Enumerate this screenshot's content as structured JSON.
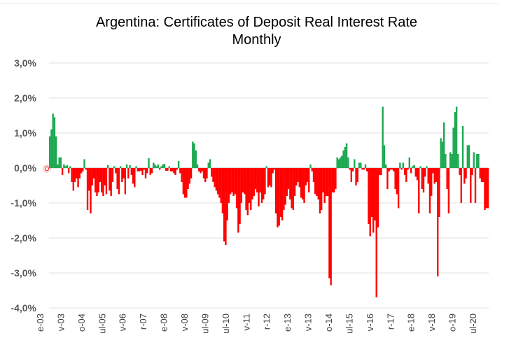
{
  "chart_data": {
    "type": "bar",
    "title": "Argentina: Certificates of Deposit Real Interest Rate",
    "subtitle": "Monthly",
    "xlabel": "",
    "ylabel": "",
    "ylim": [
      -4.0,
      3.0
    ],
    "yticks": [
      "3,0%",
      "2,0%",
      "1,0%",
      "0,0%",
      "-1,0%",
      "-2,0%",
      "-3,0%",
      "-4,0%"
    ],
    "xticks": [
      "e-03",
      "v-03",
      "o-04",
      "ul-05",
      "v-06",
      "r-07",
      "e-08",
      "v-08",
      "ul-09",
      "ul-10",
      "v-11",
      "r-12",
      "e-13",
      "v-13",
      "o-14",
      "ul-15",
      "v-16",
      "r-17",
      "e-18",
      "v-18",
      "o-19",
      "ul-20"
    ],
    "grid": true,
    "legend": "none",
    "colors": {
      "positive": "#1ea852",
      "negative": "#ff0000"
    },
    "values": [
      0.9,
      1.1,
      1.55,
      1.45,
      0.9,
      0.1,
      0.3,
      0.3,
      -0.2,
      0.1,
      0.05,
      0.08,
      -0.15,
      0.05,
      -0.4,
      -0.65,
      -0.4,
      -0.3,
      -0.55,
      -0.3,
      -0.15,
      -0.1,
      0.25,
      -0.05,
      -1.2,
      -0.65,
      -1.3,
      -0.5,
      -0.3,
      -0.7,
      -0.8,
      -0.7,
      -0.4,
      -0.7,
      -0.8,
      -0.5,
      -0.75,
      0.08,
      -0.65,
      -0.8,
      -0.4,
      0.05,
      -0.15,
      -0.6,
      -0.75,
      0.05,
      -0.4,
      -0.3,
      -0.75,
      0.1,
      -0.3,
      0.08,
      -0.2,
      -0.45,
      -0.55,
      0.05,
      -0.1,
      -0.1,
      -0.08,
      -0.2,
      -0.05,
      -0.3,
      -0.15,
      0.28,
      -0.2,
      -0.15,
      0.15,
      0.1,
      0.05,
      0.1,
      -0.05,
      0.05,
      0.1,
      0.12,
      -0.08,
      -0.08,
      0.05,
      -0.1,
      -0.1,
      -0.15,
      -0.2,
      -0.05,
      0.2,
      -0.15,
      -0.4,
      -0.75,
      -0.85,
      -0.85,
      -0.6,
      -0.45,
      -0.3,
      0.75,
      0.7,
      0.5,
      0.1,
      -0.1,
      -0.15,
      -0.1,
      -0.3,
      -0.4,
      -0.3,
      0.15,
      0.25,
      -0.25,
      -0.4,
      -0.55,
      -0.65,
      -0.75,
      -0.85,
      -1.0,
      -1.3,
      -2.1,
      -2.2,
      -1.5,
      -1.0,
      -0.75,
      -0.7,
      -0.8,
      -0.75,
      -1.15,
      -1.85,
      -1.6,
      -1.0,
      -0.7,
      -0.75,
      -1.2,
      -1.35,
      -1.0,
      -1.2,
      -0.9,
      -0.8,
      -0.6,
      -0.7,
      -1.1,
      -0.7,
      -1.0,
      -0.9,
      -0.75,
      0.05,
      -0.55,
      -0.5,
      -0.55,
      -0.15,
      -0.05,
      -1.3,
      -1.7,
      -1.65,
      -1.4,
      -1.5,
      -1.2,
      -1.05,
      -0.8,
      -0.6,
      -0.9,
      -1.15,
      -1.2,
      -0.8,
      -0.5,
      -0.4,
      -0.55,
      -0.85,
      -0.9,
      -1.0,
      -0.5,
      -0.4,
      -0.7,
      0.1,
      -0.1,
      -0.4,
      -0.75,
      -0.8,
      -0.9,
      -1.3,
      -1.2,
      -0.7,
      -1.0,
      -0.8,
      -0.8,
      -3.15,
      -3.35,
      -0.7,
      -0.7,
      -0.6,
      0.3,
      0.25,
      0.3,
      0.35,
      0.5,
      0.6,
      0.7,
      0.3,
      -0.05,
      -0.4,
      -0.1,
      0.25,
      -0.5,
      -0.4,
      0.15,
      0.15,
      -0.05,
      -0.05,
      0.1,
      -0.1,
      -1.6,
      -1.95,
      -1.4,
      -1.85,
      -1.5,
      -3.7,
      -1.7,
      -0.2,
      -0.2,
      1.75,
      0.65,
      0.1,
      -0.6,
      -0.1,
      -0.05,
      -0.05,
      -0.1,
      -0.6,
      -0.75,
      -1.15,
      0.15,
      -0.05,
      0.15,
      -0.2,
      -0.4,
      -0.05,
      0.3,
      -0.15,
      0.05,
      0.08,
      -0.25,
      -0.35,
      -1.3,
      0.05,
      -0.6,
      -0.7,
      -0.25,
      0.05,
      -0.45,
      -1.3,
      -0.8,
      -0.15,
      -0.45,
      -0.4,
      -3.1,
      -1.4,
      0.85,
      0.75,
      1.3,
      0.4,
      -0.6,
      -1.3,
      0.45,
      0.4,
      1.15,
      1.6,
      1.75,
      0.4,
      -0.2,
      -1.0,
      1.2,
      -0.45,
      -0.3,
      0.65,
      0.65,
      -1.0,
      -0.2,
      0.45,
      -1.0,
      0.4,
      0.4,
      -0.3,
      -0.4,
      -0.4,
      -1.2,
      -1.15,
      -1.15
    ]
  }
}
